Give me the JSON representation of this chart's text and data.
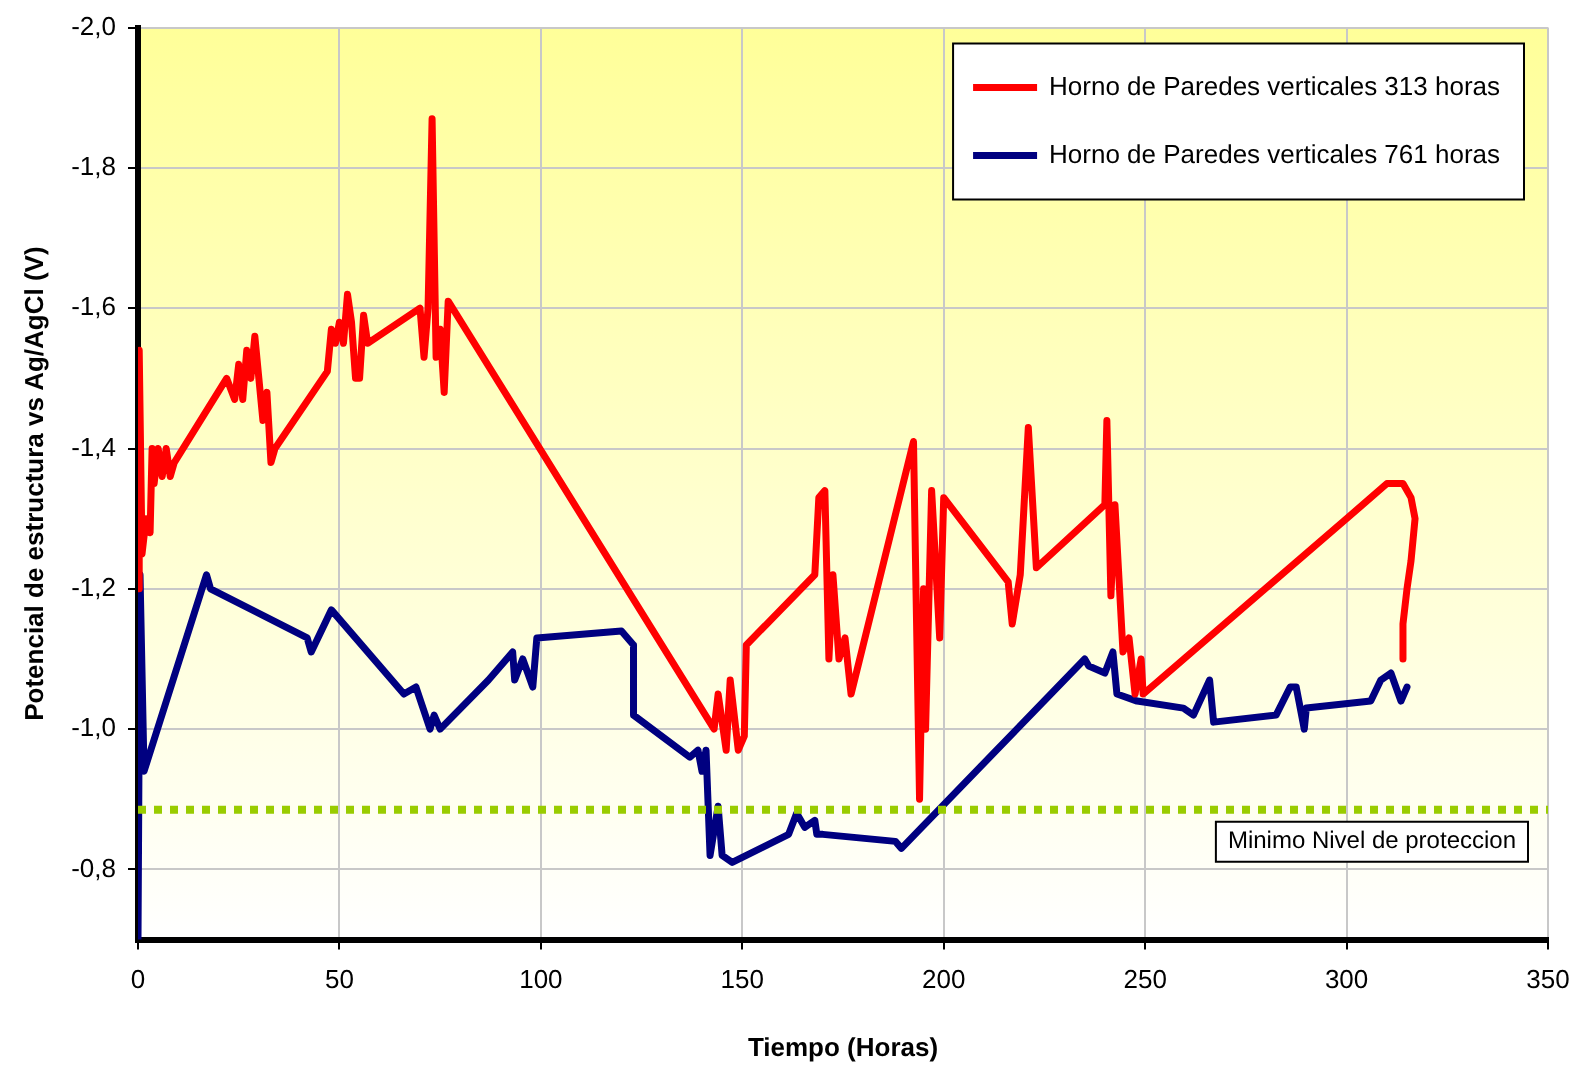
{
  "chart_data": {
    "type": "line",
    "xlabel": "Tiempo (Horas)",
    "ylabel": "Potencial de estructura vs Ag/AgCl (V)",
    "xlim": [
      0,
      350
    ],
    "xticks": [
      0,
      50,
      100,
      150,
      200,
      250,
      300,
      350
    ],
    "ylim": [
      -0.7,
      -2.0
    ],
    "yticks": [
      {
        "value": -2.0,
        "label": "-2,0"
      },
      {
        "value": -1.8,
        "label": "-1,8"
      },
      {
        "value": -1.6,
        "label": "-1,6"
      },
      {
        "value": -1.4,
        "label": "-1,4"
      },
      {
        "value": -1.2,
        "label": "-1,2"
      },
      {
        "value": -1.0,
        "label": "-1,0"
      },
      {
        "value": -0.8,
        "label": "-0,8"
      }
    ],
    "grid": true,
    "legend": "top right",
    "marker": "none",
    "line_style": "solid",
    "ref_lines": [
      {
        "axis": "y",
        "value": -0.885,
        "label": "Minimo Nivel de proteccion",
        "color": "#99cc00",
        "line_style": "dotted"
      }
    ],
    "series": [
      {
        "name": "Horno de Paredes verticales 313 horas",
        "color": "#ff0000",
        "x": [
          0,
          0.3,
          1,
          2,
          3,
          3.5,
          4,
          5,
          6,
          7,
          8,
          9,
          22,
          24,
          25,
          26,
          27,
          28,
          29,
          30,
          31,
          32,
          33,
          34,
          47,
          48,
          49,
          50,
          51,
          52,
          53,
          54,
          55,
          56,
          57,
          70,
          71,
          72,
          73,
          74,
          75,
          76,
          77,
          143,
          144,
          146,
          147,
          149,
          150.5,
          151,
          168,
          169,
          170.5,
          171.5,
          172.5,
          174,
          175.5,
          177,
          192.5,
          194,
          195,
          195.5,
          197,
          199,
          200,
          216,
          217,
          219,
          221,
          223,
          240,
          240.5,
          241.5,
          242.5,
          244.5,
          246,
          247.5,
          249,
          249.5,
          300,
          310,
          314,
          316,
          317,
          316,
          315,
          314,
          314
        ],
        "values": [
          -1.2,
          -1.54,
          -1.25,
          -1.3,
          -1.28,
          -1.4,
          -1.35,
          -1.4,
          -1.36,
          -1.4,
          -1.36,
          -1.38,
          -1.5,
          -1.47,
          -1.52,
          -1.47,
          -1.54,
          -1.5,
          -1.56,
          -1.5,
          -1.44,
          -1.48,
          -1.38,
          -1.4,
          -1.51,
          -1.57,
          -1.55,
          -1.58,
          -1.55,
          -1.62,
          -1.58,
          -1.5,
          -1.5,
          -1.59,
          -1.55,
          -1.6,
          -1.53,
          -1.6,
          -1.87,
          -1.53,
          -1.57,
          -1.48,
          -1.61,
          -1.0,
          -1.05,
          -0.97,
          -1.07,
          -0.97,
          -0.99,
          -1.12,
          -1.22,
          -1.33,
          -1.34,
          -1.1,
          -1.22,
          -1.1,
          -1.13,
          -1.05,
          -1.41,
          -0.9,
          -1.2,
          -1.0,
          -1.34,
          -1.13,
          -1.33,
          -1.21,
          -1.15,
          -1.22,
          -1.43,
          -1.23,
          -1.32,
          -1.44,
          -1.19,
          -1.32,
          -1.11,
          -1.13,
          -1.05,
          -1.1,
          -1.05,
          -1.3,
          -1.35,
          -1.35,
          -1.33,
          -1.3,
          -1.24,
          -1.2,
          -1.15,
          -1.1
        ]
      },
      {
        "name": "Horno de Paredes verticales 761 horas",
        "color": "#000080",
        "x": [
          0,
          0.5,
          1.5,
          17,
          18,
          42,
          43,
          48,
          66,
          69,
          72.5,
          73.5,
          75,
          87,
          93,
          93.5,
          95.5,
          98,
          99,
          120,
          123,
          123,
          137,
          139,
          140,
          141,
          142,
          144,
          145,
          147.5,
          161.5,
          163.5,
          165.5,
          168,
          168.5,
          170,
          188,
          189.5,
          235,
          236,
          240,
          242,
          243,
          248,
          259.5,
          262,
          266,
          267,
          282.5,
          286,
          287.5,
          289.5,
          290,
          306,
          308.5,
          311,
          313.5,
          315
        ],
        "values": [
          -0.7,
          -1.22,
          -0.94,
          -1.22,
          -1.2,
          -1.13,
          -1.11,
          -1.17,
          -1.05,
          -1.06,
          -1.0,
          -1.02,
          -1.0,
          -1.07,
          -1.11,
          -1.07,
          -1.1,
          -1.06,
          -1.13,
          -1.14,
          -1.12,
          -1.02,
          -0.96,
          -0.97,
          -0.94,
          -0.97,
          -0.82,
          -0.89,
          -0.82,
          -0.81,
          -0.85,
          -0.88,
          -0.86,
          -0.87,
          -0.85,
          -0.85,
          -0.84,
          -0.83,
          -1.1,
          -1.09,
          -1.08,
          -1.11,
          -1.05,
          -1.04,
          -1.03,
          -1.02,
          -1.07,
          -1.01,
          -1.02,
          -1.06,
          -1.06,
          -1.0,
          -1.03,
          -1.04,
          -1.07,
          -1.08,
          -1.04,
          -1.06
        ]
      }
    ]
  }
}
